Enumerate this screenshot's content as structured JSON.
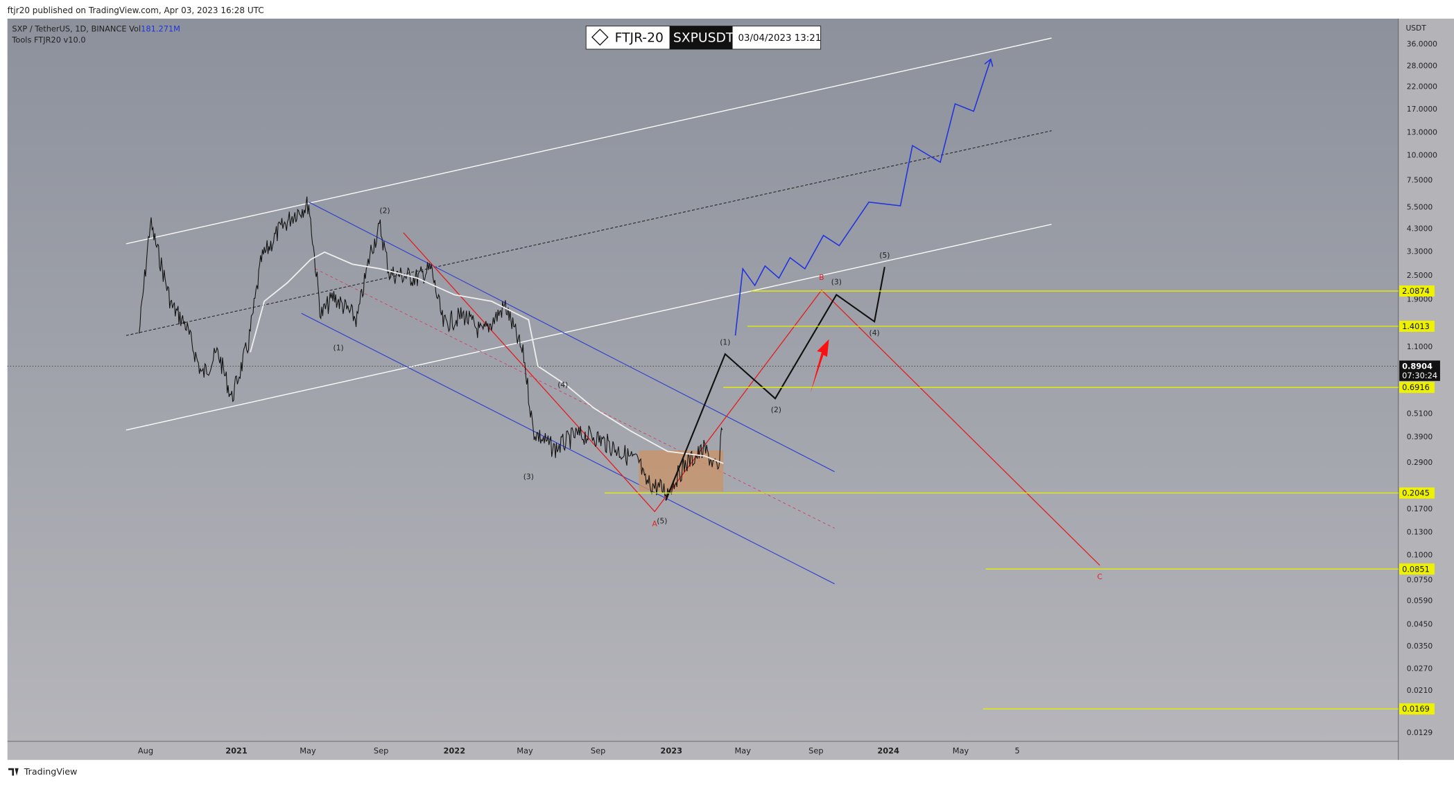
{
  "header": {
    "published": "ftjr20 published on TradingView.com, Apr 03, 2023 16:28 UTC"
  },
  "legend": {
    "symbol": "SXP / TetherUS, 1D, BINANCE",
    "vol_label": "Vol",
    "vol_value": "181.271M",
    "tools": "Tools FTJR20 v10.0"
  },
  "badge": {
    "brand": "FTJR-20",
    "ticker": "SXPUSDT",
    "date": "03/04/2023 13:21"
  },
  "price_axis": {
    "unit": "USDT",
    "ticks": [
      "36.0000",
      "28.0000",
      "22.0000",
      "17.0000",
      "13.0000",
      "10.0000",
      "7.5000",
      "5.5000",
      "4.3000",
      "3.3000",
      "2.5000",
      "1.9000",
      "1.1000",
      "0.5100",
      "0.3900",
      "0.2900",
      "0.1700",
      "0.1300",
      "0.1000",
      "0.0750",
      "0.0590",
      "0.0450",
      "0.0350",
      "0.0270",
      "0.0210",
      "0.0129"
    ],
    "levels": [
      "2.0874",
      "1.4013",
      "0.6916",
      "0.2045",
      "0.0851",
      "0.0169"
    ],
    "last_price": "0.8904",
    "countdown": "07:30:24"
  },
  "time_axis": {
    "ticks": [
      "Aug",
      "2021",
      "May",
      "Sep",
      "2022",
      "May",
      "Sep",
      "2023",
      "May",
      "Sep",
      "2024",
      "May",
      "5"
    ]
  },
  "wave_labels": [
    "(2)",
    "(1)",
    "(4)",
    "(3)",
    "(5)",
    "A",
    "(1)",
    "(2)",
    "(3)",
    "B",
    "(4)",
    "(5)",
    "C"
  ],
  "footer": {
    "brand": "TradingView"
  }
}
